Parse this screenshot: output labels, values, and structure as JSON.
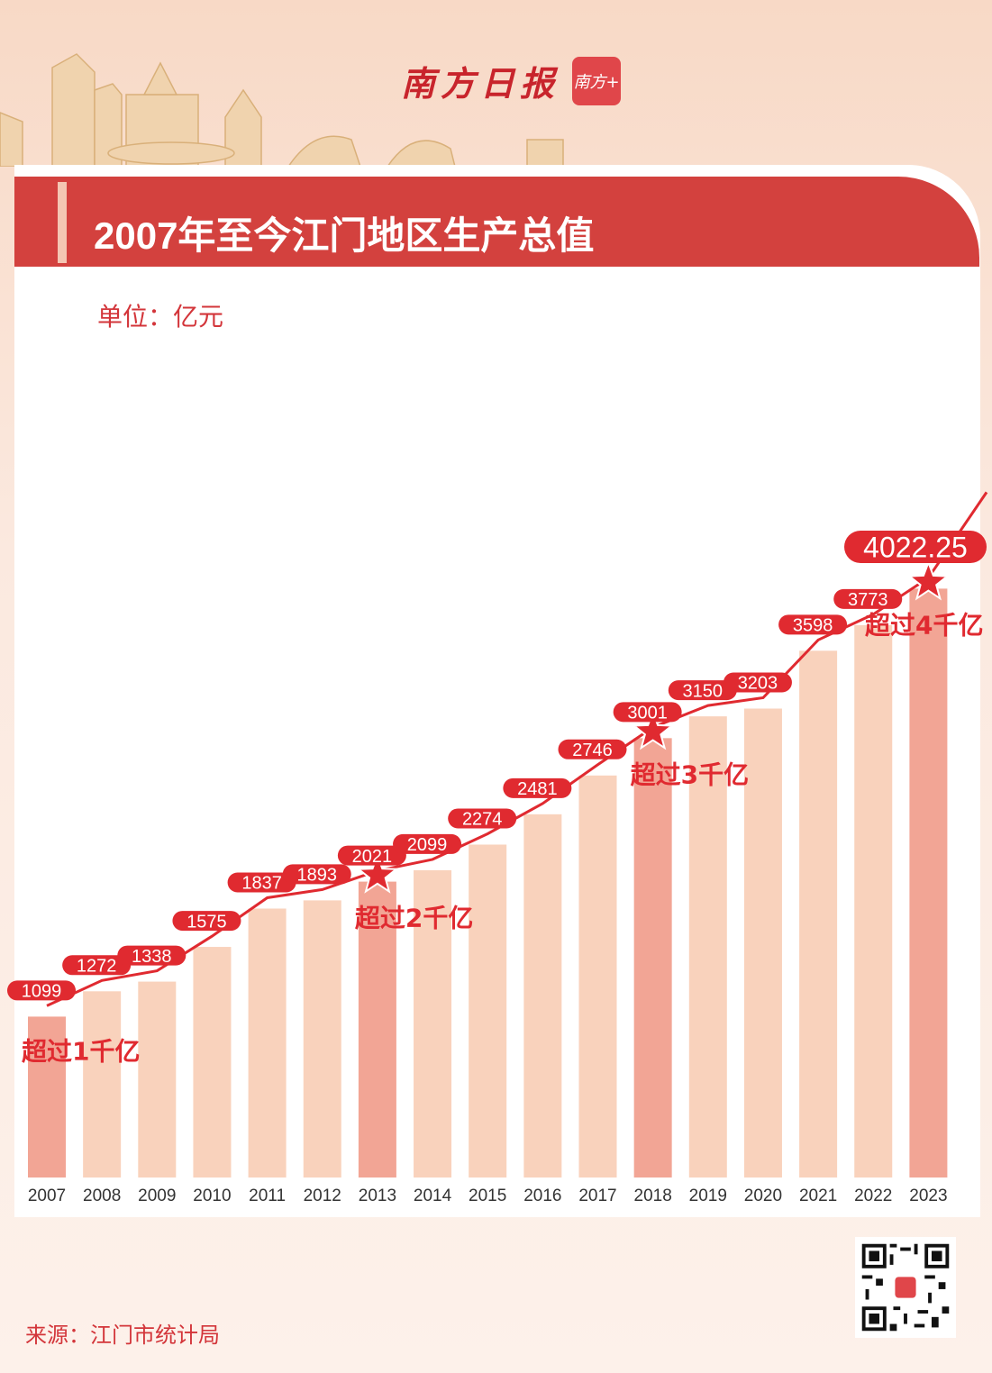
{
  "brand": {
    "logo_text": "南方日报",
    "app_badge": "南方+"
  },
  "header": {
    "title": "2007年至今江门地区生产总值",
    "unit": "单位：亿元"
  },
  "footer": {
    "source": "来源：江门市统计局"
  },
  "colors": {
    "banner": "#d3413e",
    "bar": "#f9d2bc",
    "bar_highlight": "#f2a595",
    "line": "#e02a30",
    "label_bg": "#e02a30"
  },
  "chart_data": {
    "type": "bar",
    "title": "2007年至今江门地区生产总值",
    "ylabel": "单位：亿元",
    "categories": [
      "2007",
      "2008",
      "2009",
      "2010",
      "2011",
      "2012",
      "2013",
      "2014",
      "2015",
      "2016",
      "2017",
      "2018",
      "2019",
      "2020",
      "2021",
      "2022",
      "2023"
    ],
    "values": [
      1099,
      1272,
      1338,
      1575,
      1837,
      1893,
      2021,
      2099,
      2274,
      2481,
      2746,
      3001,
      3150,
      3203,
      3598,
      3773,
      4022.25
    ],
    "labels": [
      "1099",
      "1272",
      "1338",
      "1575",
      "1837",
      "1893",
      "2021",
      "2099",
      "2274",
      "2481",
      "2746",
      "3001",
      "3150",
      "3203",
      "3598",
      "3773",
      "4022.25"
    ],
    "overlay_line": true,
    "highlighted": [
      "2007",
      "2013",
      "2018",
      "2023"
    ],
    "annotations": [
      {
        "category": "2007",
        "text": "超过1千亿",
        "marker": "none"
      },
      {
        "category": "2013",
        "text": "超过2千亿",
        "marker": "star"
      },
      {
        "category": "2018",
        "text": "超过3千亿",
        "marker": "star"
      },
      {
        "category": "2023",
        "text": "超过4千亿",
        "marker": "star"
      }
    ],
    "ylim": [
      0,
      4200
    ],
    "grid": false
  }
}
